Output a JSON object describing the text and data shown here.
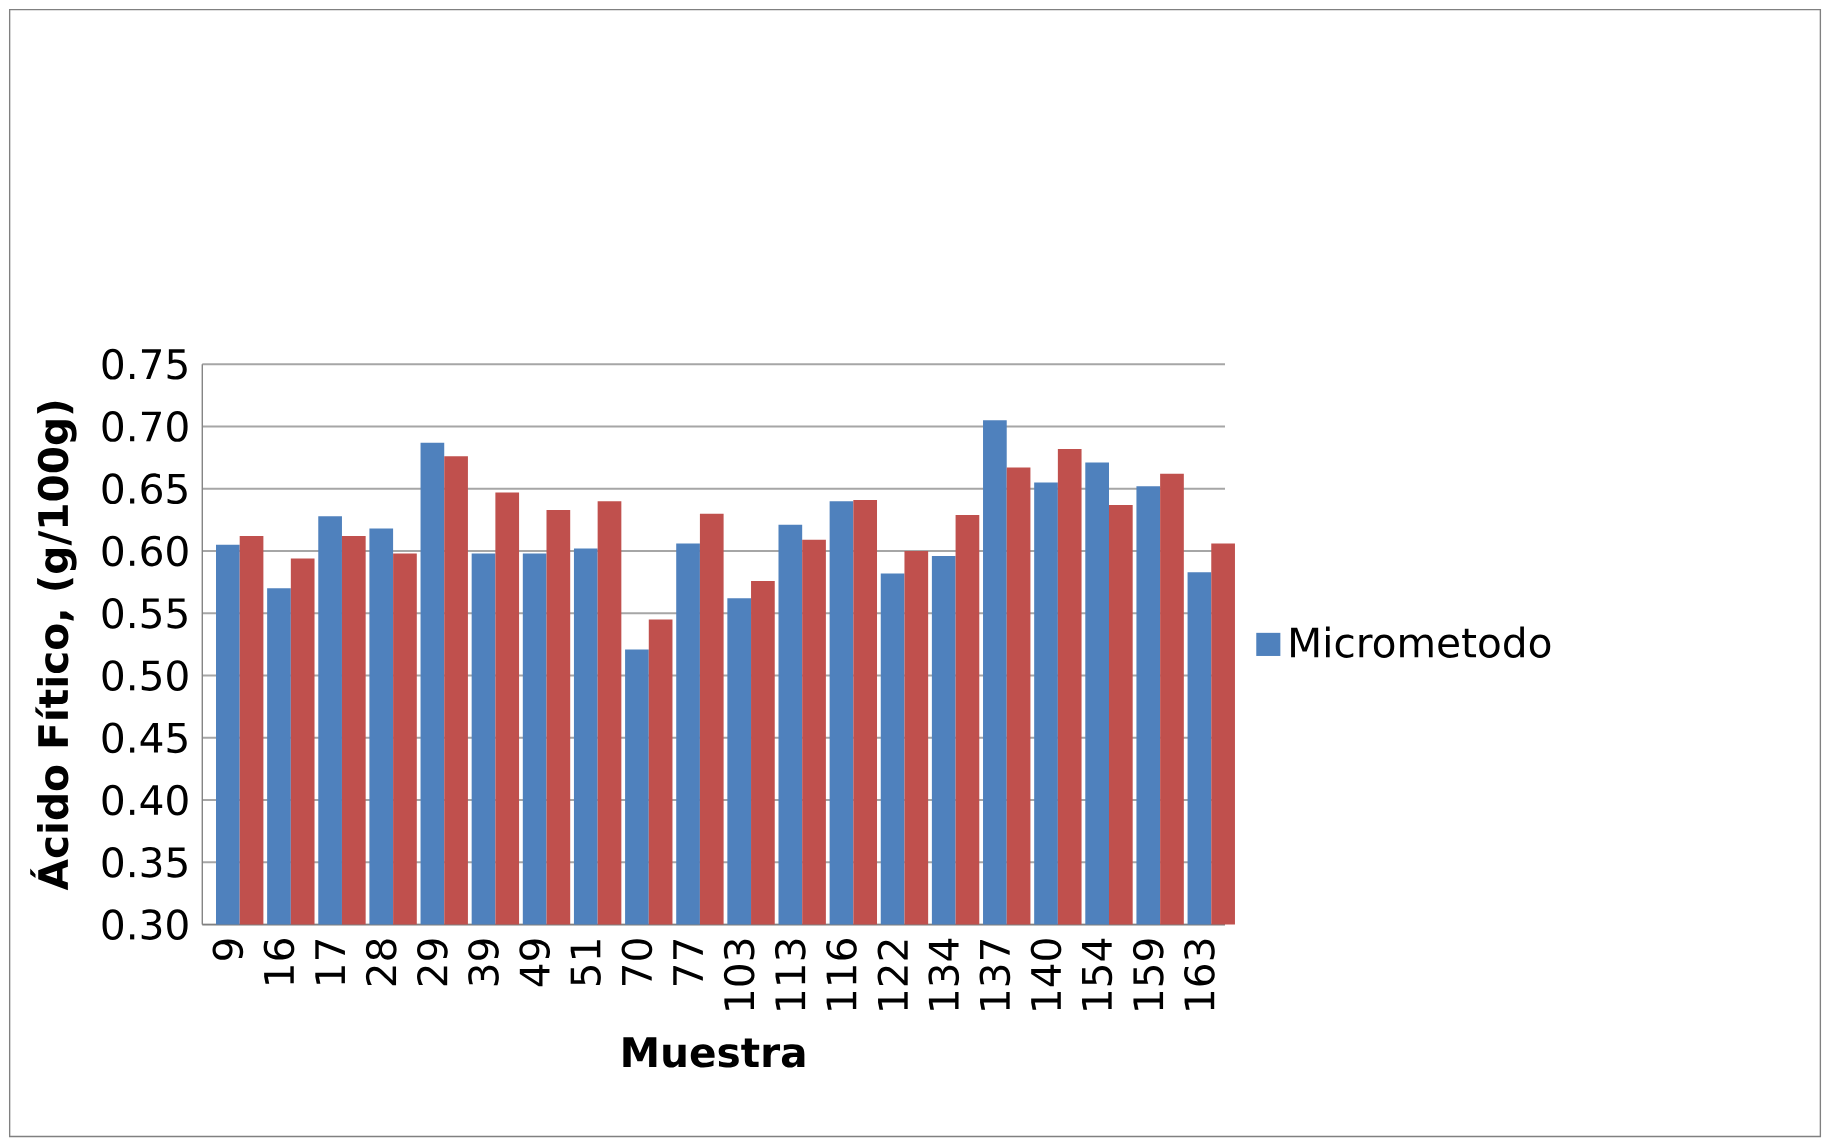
{
  "chart_data": {
    "type": "bar",
    "xlabel": "Muestra",
    "ylabel": "Ácido Fítico, (g/100g)",
    "categories": [
      "9",
      "16",
      "17",
      "28",
      "29",
      "39",
      "49",
      "51",
      "70",
      "77",
      "103",
      "113",
      "116",
      "122",
      "134",
      "137",
      "140",
      "154",
      "159",
      "163"
    ],
    "series": [
      {
        "name": "Micrometodo",
        "color": "#4f81bd",
        "values": [
          0.605,
          0.57,
          0.628,
          0.618,
          0.687,
          0.598,
          0.598,
          0.602,
          0.521,
          0.606,
          0.562,
          0.621,
          0.64,
          0.582,
          0.596,
          0.705,
          0.655,
          0.671,
          0.652,
          0.583
        ]
      },
      {
        "color": "#c0504d",
        "values": [
          0.612,
          0.594,
          0.612,
          0.598,
          0.676,
          0.647,
          0.633,
          0.64,
          0.545,
          0.63,
          0.576,
          0.609,
          0.641,
          0.6,
          0.629,
          0.667,
          0.682,
          0.637,
          0.662,
          0.606
        ]
      }
    ],
    "ylim": [
      0.3,
      0.75
    ],
    "yticks": [
      {
        "value": 0.3,
        "label": "0.30"
      },
      {
        "value": 0.35,
        "label": "0.35"
      },
      {
        "value": 0.4,
        "label": "0.40"
      },
      {
        "value": 0.45,
        "label": "0.45"
      },
      {
        "value": 0.5,
        "label": "0.50"
      },
      {
        "value": 0.55,
        "label": "0.55"
      },
      {
        "value": 0.6,
        "label": "0.60"
      },
      {
        "value": 0.65,
        "label": "0.65"
      },
      {
        "value": 0.7,
        "label": "0.70"
      },
      {
        "value": 0.75,
        "label": "0.75"
      }
    ],
    "grid": "y",
    "legend": "right"
  }
}
